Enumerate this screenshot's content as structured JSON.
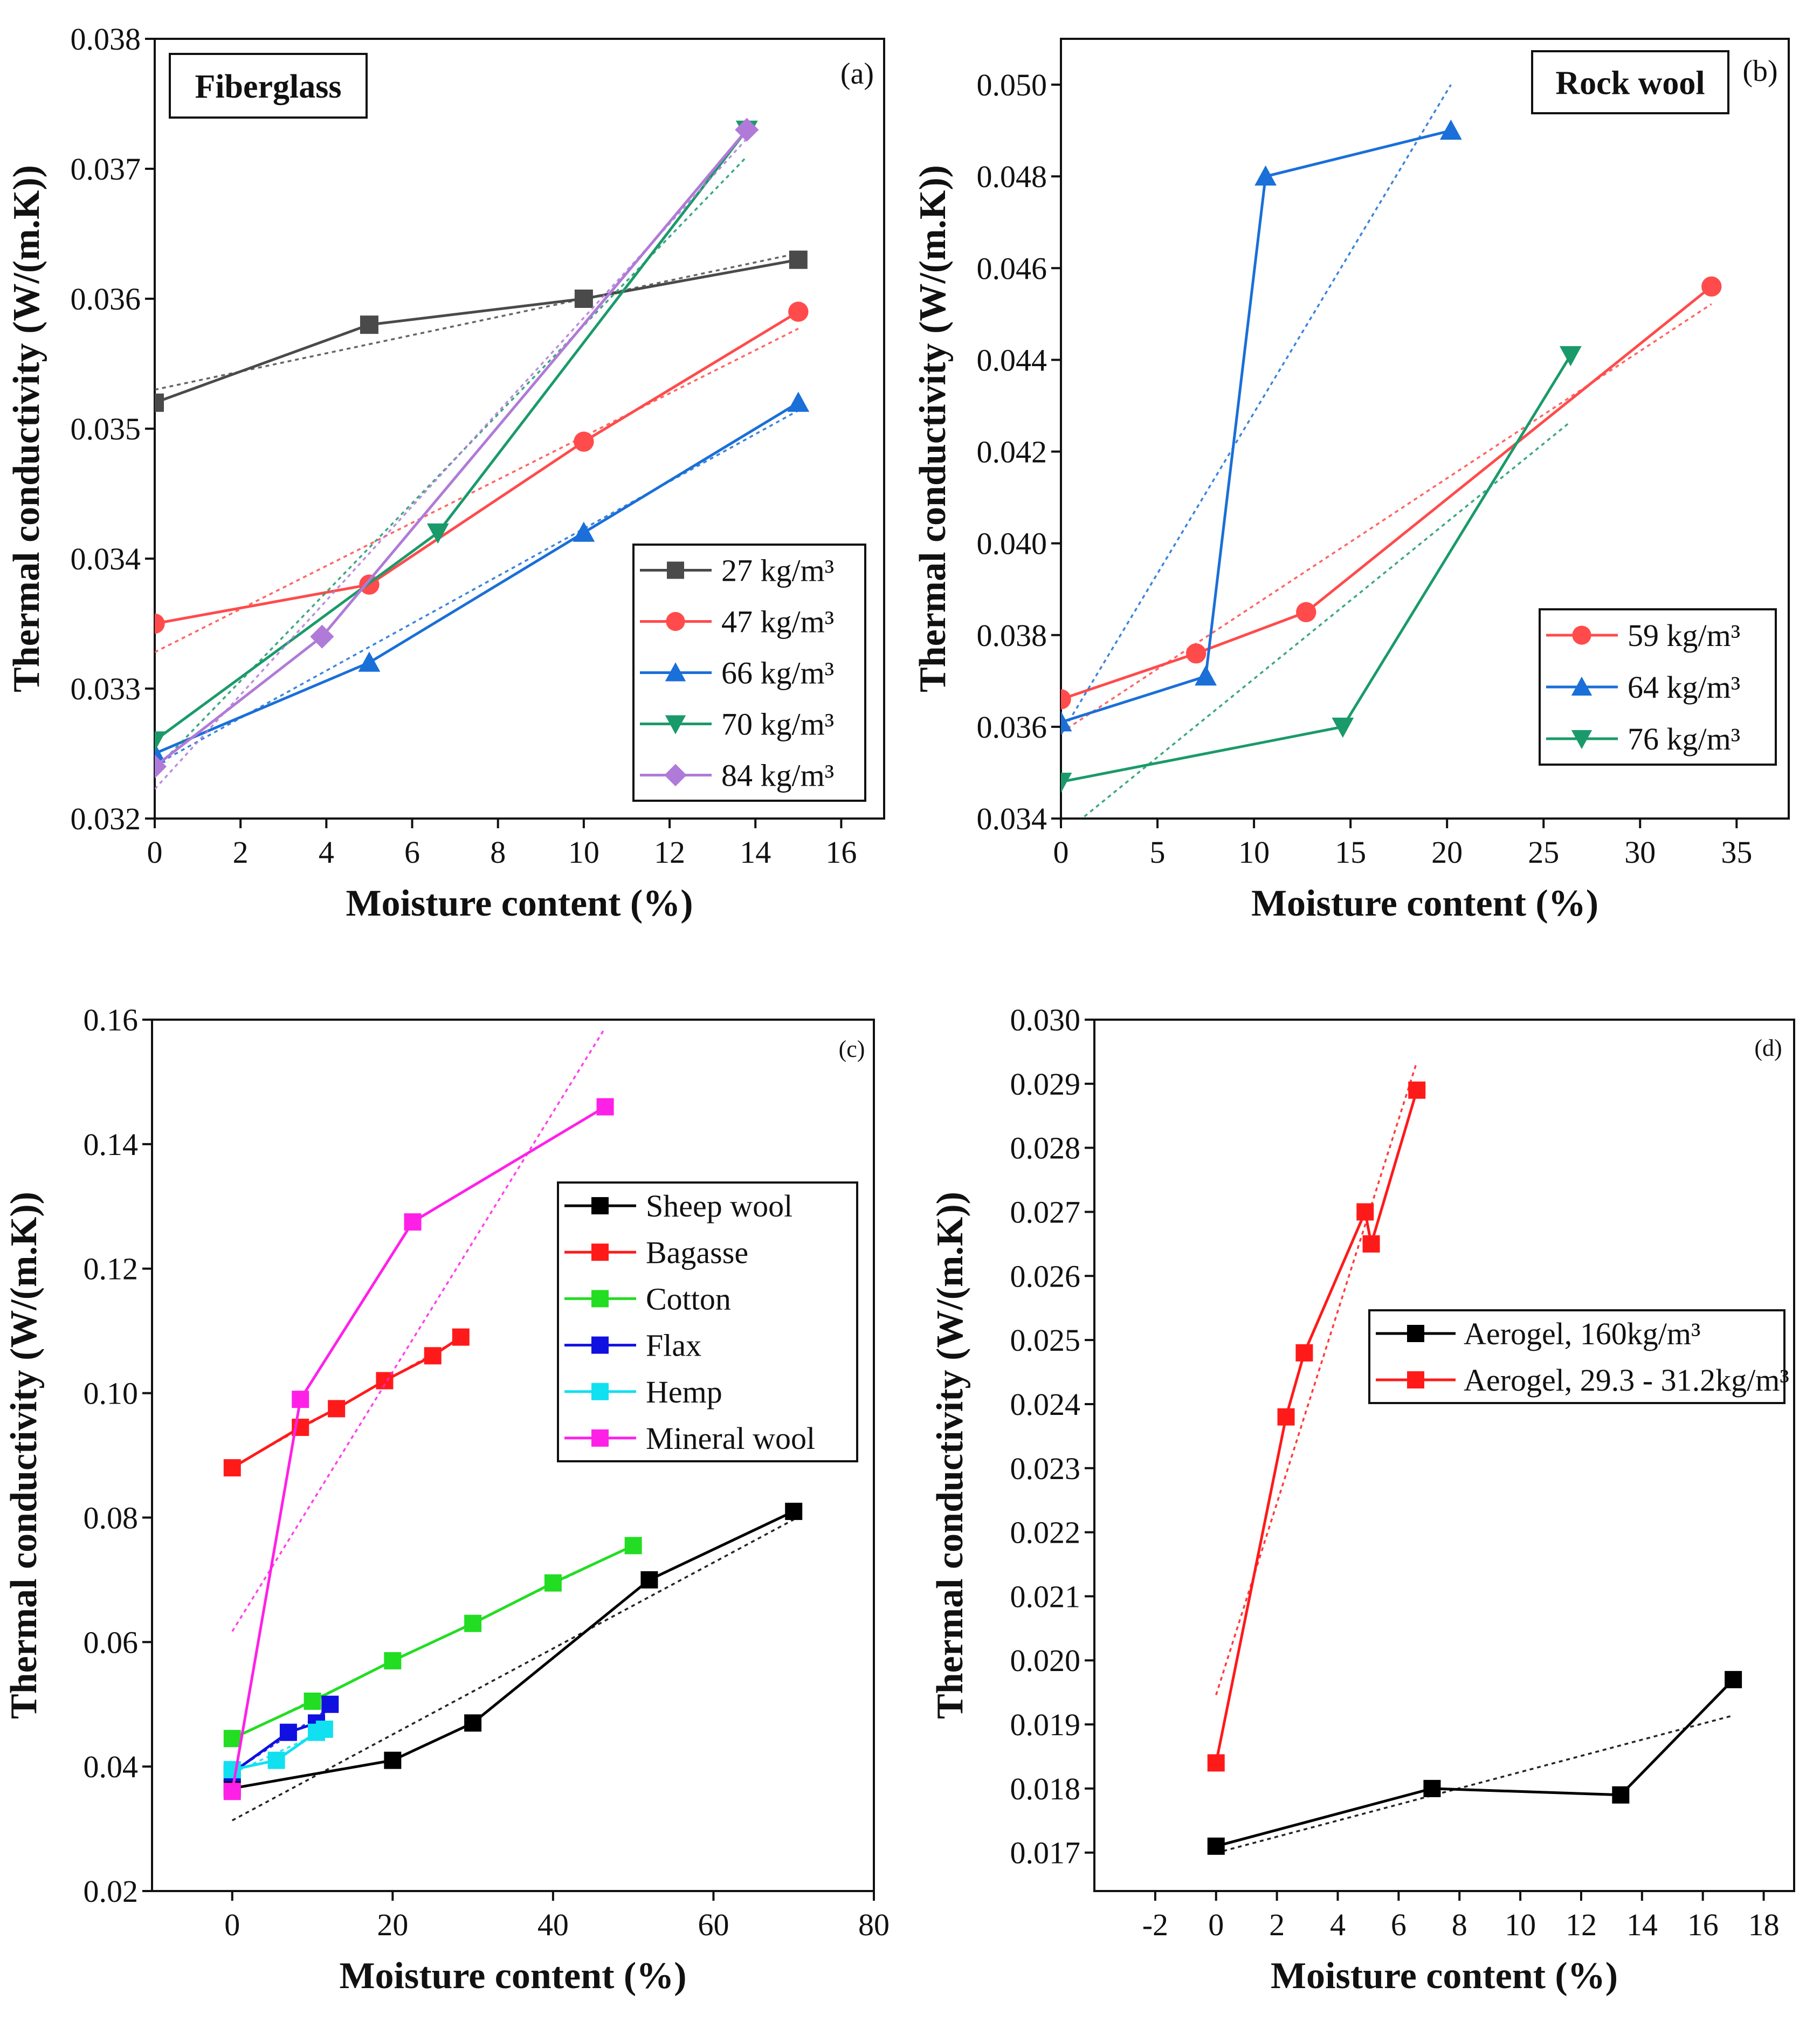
{
  "chart_data": [
    {
      "type": "line",
      "panel_label": "(a)",
      "title": "Fiberglass",
      "xlabel": "Moisture content (%)",
      "ylabel": "Thermal conductivity (W/(m.K))",
      "xlim": [
        0,
        17
      ],
      "ylim": [
        0.032,
        0.038
      ],
      "xticks": [
        0,
        2,
        4,
        6,
        8,
        10,
        12,
        14,
        16
      ],
      "yticks": [
        0.032,
        0.033,
        0.034,
        0.035,
        0.036,
        0.037,
        0.038
      ],
      "ydec": 3,
      "legend_position": "bottom-right",
      "grid": false,
      "trendlines": true,
      "series": [
        {
          "name": "27 kg/m³",
          "color": "#4a4a4a",
          "marker": "square",
          "x": [
            0,
            5,
            10,
            15
          ],
          "y": [
            0.0352,
            0.0358,
            0.036,
            0.0363
          ]
        },
        {
          "name": "47 kg/m³",
          "color": "#ff4b4b",
          "marker": "circle",
          "x": [
            0,
            5,
            10,
            15
          ],
          "y": [
            0.0335,
            0.0338,
            0.0349,
            0.0359
          ]
        },
        {
          "name": "66 kg/m³",
          "color": "#1a6fd8",
          "marker": "triangle-up",
          "x": [
            0,
            5,
            10,
            15
          ],
          "y": [
            0.0325,
            0.0332,
            0.0342,
            0.0352
          ]
        },
        {
          "name": "70 kg/m³",
          "color": "#1a9a6a",
          "marker": "triangle-down",
          "x": [
            0,
            6.6,
            13.8
          ],
          "y": [
            0.0326,
            0.0342,
            0.0373
          ]
        },
        {
          "name": "84 kg/m³",
          "color": "#b07ad8",
          "marker": "diamond",
          "x": [
            0,
            3.9,
            13.8
          ],
          "y": [
            0.0324,
            0.0334,
            0.0373
          ]
        }
      ]
    },
    {
      "type": "line",
      "panel_label": "(b)",
      "title": "Rock wool",
      "xlabel": "Moisture content (%)",
      "ylabel": "Thermal conductivity (W/(m.K))",
      "xlim": [
        0,
        37.7
      ],
      "ylim": [
        0.034,
        0.051
      ],
      "xticks": [
        0,
        5,
        10,
        15,
        20,
        25,
        30,
        35
      ],
      "yticks": [
        0.034,
        0.036,
        0.038,
        0.04,
        0.042,
        0.044,
        0.046,
        0.048,
        0.05
      ],
      "ydec": 3,
      "legend_position": "bottom-right",
      "grid": false,
      "trendlines": true,
      "series": [
        {
          "name": "59 kg/m³",
          "color": "#ff4b4b",
          "marker": "circle",
          "x": [
            0,
            7,
            12.7,
            33.7
          ],
          "y": [
            0.0366,
            0.0376,
            0.0385,
            0.0456
          ]
        },
        {
          "name": "64 kg/m³",
          "color": "#1a6fd8",
          "marker": "triangle-up",
          "x": [
            0,
            7.5,
            10.6,
            20.2
          ],
          "y": [
            0.0361,
            0.0371,
            0.048,
            0.049
          ]
        },
        {
          "name": "76 kg/m³",
          "color": "#1a9a6a",
          "marker": "triangle-down",
          "x": [
            0,
            14.6,
            26.4
          ],
          "y": [
            0.0348,
            0.036,
            0.0441
          ]
        }
      ]
    },
    {
      "type": "line",
      "panel_label": "(c)",
      "title": "",
      "xlabel": "Moisture content (%)",
      "ylabel": "Thermal conductivity (W/(m.K))",
      "xlim": [
        -10,
        80
      ],
      "ylim": [
        0.02,
        0.16
      ],
      "xticks": [
        0,
        20,
        40,
        60,
        80
      ],
      "yticks": [
        0.02,
        0.04,
        0.06,
        0.08,
        0.1,
        0.12,
        0.14,
        0.16
      ],
      "ydec": 2,
      "legend_position": "center-right",
      "grid": false,
      "trendlines": true,
      "series": [
        {
          "name": "Sheep wool",
          "color": "#000000",
          "marker": "square",
          "x": [
            0,
            20,
            30,
            52,
            70
          ],
          "y": [
            0.0365,
            0.041,
            0.047,
            0.07,
            0.081
          ]
        },
        {
          "name": "Bagasse",
          "color": "#ff1a1a",
          "marker": "square",
          "x": [
            0,
            8.5,
            13,
            19,
            25,
            28.5
          ],
          "y": [
            0.088,
            0.0945,
            0.0975,
            0.102,
            0.106,
            0.109
          ]
        },
        {
          "name": "Cotton",
          "color": "#22dd22",
          "marker": "square",
          "x": [
            0,
            10,
            20,
            30,
            40,
            50
          ],
          "y": [
            0.0445,
            0.0505,
            0.057,
            0.063,
            0.0695,
            0.0755
          ]
        },
        {
          "name": "Flax",
          "color": "#1010e0",
          "marker": "square",
          "x": [
            0,
            7,
            10.5,
            12.2
          ],
          "y": [
            0.039,
            0.0455,
            0.047,
            0.05
          ]
        },
        {
          "name": "Hemp",
          "color": "#10e0f0",
          "marker": "square",
          "x": [
            0,
            5.5,
            10.5,
            11.5
          ],
          "y": [
            0.0395,
            0.041,
            0.0455,
            0.046
          ]
        },
        {
          "name": "Mineral wool",
          "color": "#ff20e8",
          "marker": "square",
          "x": [
            0,
            8.5,
            22.5,
            46.5
          ],
          "y": [
            0.036,
            0.099,
            0.1275,
            0.146
          ]
        }
      ]
    },
    {
      "type": "line",
      "panel_label": "(d)",
      "title": "",
      "xlabel": "Moisture content (%)",
      "ylabel": "Thermal conductivity (W/(m.K))",
      "xlim": [
        -4,
        19
      ],
      "ylim": [
        0.0164,
        0.03
      ],
      "xticks": [
        -2,
        0,
        2,
        4,
        6,
        8,
        10,
        12,
        14,
        16,
        18
      ],
      "yticks": [
        0.017,
        0.018,
        0.019,
        0.02,
        0.021,
        0.022,
        0.023,
        0.024,
        0.025,
        0.026,
        0.027,
        0.028,
        0.029,
        0.03
      ],
      "ydec": 3,
      "legend_position": "center-right",
      "grid": false,
      "trendlines": true,
      "series": [
        {
          "name": "Aerogel, 160kg/m³",
          "color": "#000000",
          "marker": "square",
          "x": [
            0,
            7.1,
            13.3,
            17
          ],
          "y": [
            0.0171,
            0.018,
            0.0179,
            0.0197
          ]
        },
        {
          "name": "Aerogel, 29.3 - 31.2kg/m³",
          "color": "#ff1a1a",
          "marker": "square",
          "x": [
            0,
            2.3,
            2.9,
            4.9,
            5.1,
            6.6
          ],
          "y": [
            0.0184,
            0.0238,
            0.0248,
            0.027,
            0.0265,
            0.0289
          ]
        }
      ]
    }
  ]
}
